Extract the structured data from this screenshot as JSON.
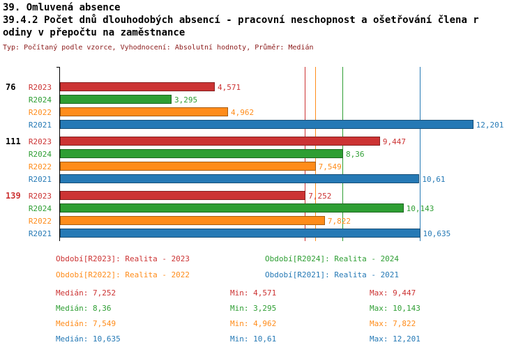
{
  "header": {
    "title": "39. Omluvená absence",
    "subtitle_lines": [
      "39.4.2 Počet dnů dlouhodobých absencí - pracovní neschopnost a ošetřování člena r",
      "odiny v přepočtu na zaměstnance"
    ],
    "meta": "Typ: Počítaný podle vzorce, Vyhodnocení: Absolutní hodnoty, Průměr: Medián"
  },
  "chart_data": {
    "type": "bar",
    "orientation": "horizontal",
    "xlim": [
      0,
      12.6
    ],
    "grid": false,
    "series_order": [
      "R2023",
      "R2024",
      "R2022",
      "R2021"
    ],
    "series_colors": {
      "R2023": "#cc3333",
      "R2024": "#2e9e33",
      "R2022": "#ff8c1a",
      "R2021": "#2579b5"
    },
    "groups": [
      {
        "label": "76",
        "label_color": "#000000",
        "bars": [
          {
            "series": "R2023",
            "value": 4.571,
            "display": "4,571"
          },
          {
            "series": "R2024",
            "value": 3.295,
            "display": "3,295"
          },
          {
            "series": "R2022",
            "value": 4.962,
            "display": "4,962"
          },
          {
            "series": "R2021",
            "value": 12.201,
            "display": "12,201"
          }
        ]
      },
      {
        "label": "111",
        "label_color": "#000000",
        "bars": [
          {
            "series": "R2023",
            "value": 9.447,
            "display": "9,447"
          },
          {
            "series": "R2024",
            "value": 8.36,
            "display": "8,36"
          },
          {
            "series": "R2022",
            "value": 7.549,
            "display": "7,549"
          },
          {
            "series": "R2021",
            "value": 10.61,
            "display": "10,61"
          }
        ]
      },
      {
        "label": "139",
        "label_color": "#cc3333",
        "bars": [
          {
            "series": "R2023",
            "value": 7.252,
            "display": "7,252"
          },
          {
            "series": "R2024",
            "value": 10.143,
            "display": "10,143"
          },
          {
            "series": "R2022",
            "value": 7.822,
            "display": "7,822"
          },
          {
            "series": "R2021",
            "value": 10.635,
            "display": "10,635"
          }
        ]
      }
    ],
    "reference_lines": [
      {
        "series": "R2023",
        "value": 7.252
      },
      {
        "series": "R2022",
        "value": 7.549
      },
      {
        "series": "R2024",
        "value": 8.36
      },
      {
        "series": "R2021",
        "value": 10.635
      }
    ]
  },
  "legend": {
    "columns": [
      [
        {
          "series": "R2023",
          "text": "Období[R2023]: Realita - 2023"
        },
        {
          "series": "R2022",
          "text": "Období[R2022]: Realita - 2022"
        }
      ],
      [
        {
          "series": "R2024",
          "text": "Období[R2024]: Realita - 2024"
        },
        {
          "series": "R2021",
          "text": "Období[R2021]: Realita - 2021"
        }
      ]
    ]
  },
  "stats": {
    "rows": [
      {
        "series": "R2023",
        "median": "Medián: 7,252",
        "min": "Min: 4,571",
        "max": "Max: 9,447"
      },
      {
        "series": "R2024",
        "median": "Medián: 8,36",
        "min": "Min: 3,295",
        "max": "Max: 10,143"
      },
      {
        "series": "R2022",
        "median": "Medián: 7,549",
        "min": "Min: 4,962",
        "max": "Max: 7,822"
      },
      {
        "series": "R2021",
        "median": "Medián: 10,635",
        "min": "Min: 10,61",
        "max": "Max: 12,201"
      }
    ]
  }
}
